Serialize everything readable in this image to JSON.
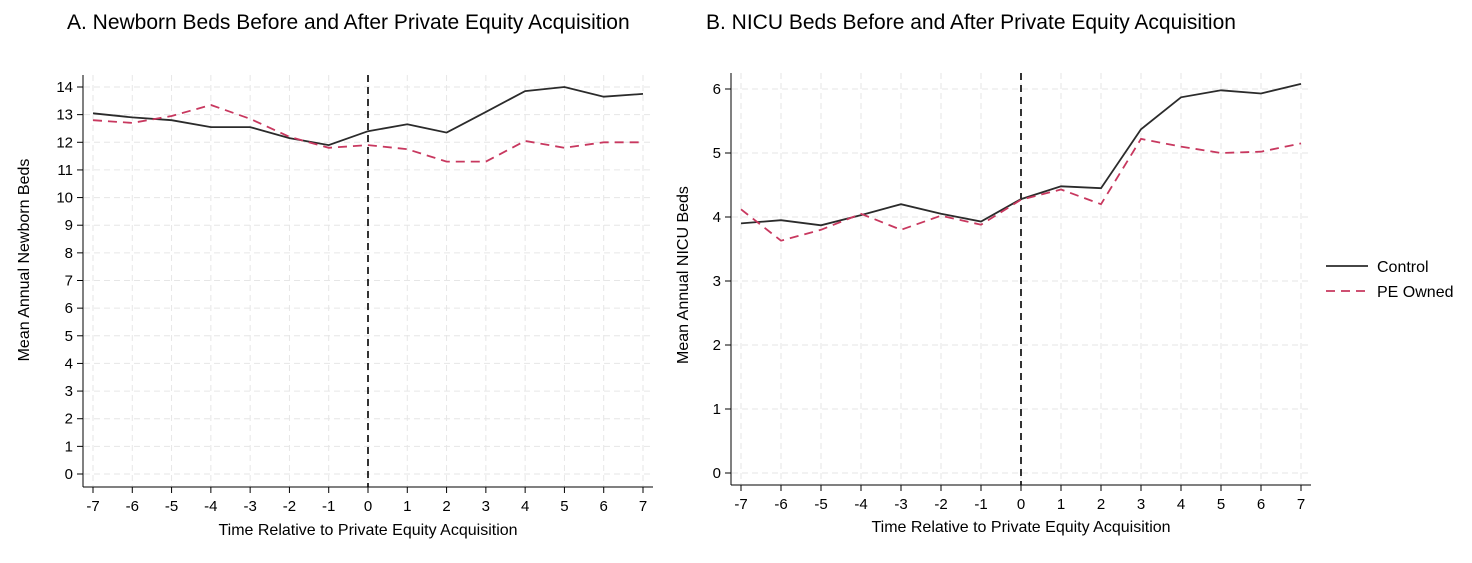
{
  "chart_data": [
    {
      "type": "line",
      "title": "A. Newborn Beds Before and After Private Equity Acquisition",
      "xlabel": "Time Relative to Private Equity Acquisition",
      "ylabel": "Mean Annual Newborn Beds",
      "x": [
        -7,
        -6,
        -5,
        -4,
        -3,
        -2,
        -1,
        0,
        1,
        2,
        3,
        4,
        5,
        6,
        7
      ],
      "xlim": [
        -7,
        7
      ],
      "ylim": [
        0,
        14
      ],
      "yticks": [
        0,
        1,
        2,
        3,
        4,
        5,
        6,
        7,
        8,
        9,
        10,
        11,
        12,
        13,
        14
      ],
      "grid": true,
      "vertical_reference_x": 0,
      "series": [
        {
          "name": "Control",
          "color": "#2b2b2b",
          "dash": "solid",
          "values": [
            13.05,
            12.9,
            12.8,
            12.55,
            12.55,
            12.15,
            11.9,
            12.4,
            12.65,
            12.35,
            13.1,
            13.85,
            14.0,
            13.65,
            13.75
          ]
        },
        {
          "name": "PE Owned",
          "color": "#c8385f",
          "dash": "dashed",
          "values": [
            12.8,
            12.7,
            12.95,
            13.35,
            12.85,
            12.2,
            11.8,
            11.9,
            11.75,
            11.3,
            11.3,
            12.05,
            11.8,
            12.0,
            12.0
          ]
        }
      ]
    },
    {
      "type": "line",
      "title": "B. NICU Beds Before and After Private Equity Acquisition",
      "xlabel": "Time Relative to Private Equity Acquisition",
      "ylabel": "Mean Annual NICU Beds",
      "x": [
        -7,
        -6,
        -5,
        -4,
        -3,
        -2,
        -1,
        0,
        1,
        2,
        3,
        4,
        5,
        6,
        7
      ],
      "xlim": [
        -7,
        7
      ],
      "ylim": [
        0,
        6
      ],
      "yticks": [
        0,
        1,
        2,
        3,
        4,
        5,
        6
      ],
      "grid": true,
      "vertical_reference_x": 0,
      "series": [
        {
          "name": "Control",
          "color": "#2b2b2b",
          "dash": "solid",
          "values": [
            3.9,
            3.95,
            3.87,
            4.03,
            4.2,
            4.05,
            3.93,
            4.28,
            4.48,
            4.45,
            5.37,
            5.87,
            5.98,
            5.93,
            6.08
          ]
        },
        {
          "name": "PE Owned",
          "color": "#c8385f",
          "dash": "dashed",
          "values": [
            4.12,
            3.63,
            3.8,
            4.05,
            3.8,
            4.02,
            3.88,
            4.27,
            4.43,
            4.2,
            5.22,
            5.1,
            5.0,
            5.02,
            5.15
          ]
        }
      ]
    }
  ],
  "legend": {
    "placement": "right",
    "items": [
      {
        "label": "Control",
        "color": "#2b2b2b",
        "dash": "solid"
      },
      {
        "label": "PE Owned",
        "color": "#c8385f",
        "dash": "dashed"
      }
    ]
  }
}
